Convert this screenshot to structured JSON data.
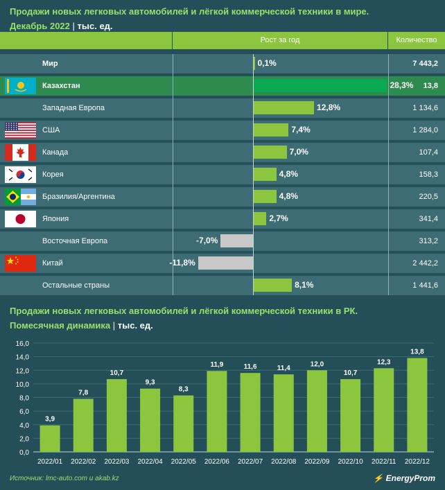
{
  "table": {
    "title_line1": "Продажи новых легковых автомобилей и лёгкой коммерческой техники в мире.",
    "title_line2": "Декабрь 2022",
    "unit_sep": "|",
    "unit": "тыс. ед.",
    "col_growth": "Рост за год",
    "col_qty": "Количество",
    "rows": [
      {
        "country": "Мир",
        "growth": 0.1,
        "growth_label": "0,1%",
        "qty": "7 443,2"
      },
      {
        "country": "Казахстан",
        "growth": 28.3,
        "growth_label": "28,3%",
        "qty": "13,8"
      },
      {
        "country": "Западная Европа",
        "growth": 12.8,
        "growth_label": "12,8%",
        "qty": "1 134,6"
      },
      {
        "country": "США",
        "growth": 7.4,
        "growth_label": "7,4%",
        "qty": "1 284,0"
      },
      {
        "country": "Канада",
        "growth": 7.0,
        "growth_label": "7,0%",
        "qty": "107,4"
      },
      {
        "country": "Корея",
        "growth": 4.8,
        "growth_label": "4,8%",
        "qty": "158,3"
      },
      {
        "country": "Бразилия/Аргентина",
        "growth": 4.8,
        "growth_label": "4,8%",
        "qty": "220,5"
      },
      {
        "country": "Япония",
        "growth": 2.7,
        "growth_label": "2,7%",
        "qty": "341,4"
      },
      {
        "country": "Восточная Европа",
        "growth": -7.0,
        "growth_label": "-7,0%",
        "qty": "313,2"
      },
      {
        "country": "Китай",
        "growth": -11.8,
        "growth_label": "-11,8%",
        "qty": "2 442,2"
      },
      {
        "country": "Остальные страны",
        "growth": 8.1,
        "growth_label": "8,1%",
        "qty": "1 441,6"
      }
    ],
    "flags": [
      "",
      "kazakhstan-flag",
      "",
      "usa-flag",
      "canada-flag",
      "korea-flag",
      "brazil-argentina-flag",
      "japan-flag",
      "",
      "china-flag",
      ""
    ],
    "colors": {
      "positive": "#8cc63e",
      "highlight": "#0aa850",
      "negative": "#c8c8c8"
    }
  },
  "chart": {
    "title_line1": "Продажи новых легковых автомобилей и лёгкой коммерческой техники в РК.",
    "title_line2": "Помесячная динамика",
    "unit_sep": "|",
    "unit": "тыс. ед."
  },
  "chart_data": {
    "type": "bar",
    "title": "Продажи новых легковых автомобилей и лёгкой коммерческой техники в РК. Помесячная динамика",
    "categories": [
      "2022/01",
      "2022/02",
      "2022/03",
      "2022/04",
      "2022/05",
      "2022/06",
      "2022/07",
      "2022/08",
      "2022/09",
      "2022/10",
      "2022/11",
      "2022/12"
    ],
    "values": [
      3.9,
      7.8,
      10.7,
      9.3,
      8.3,
      11.9,
      11.6,
      11.4,
      12.0,
      10.7,
      12.3,
      13.8
    ],
    "value_labels": [
      "3,9",
      "7,8",
      "10,7",
      "9,3",
      "8,3",
      "11,9",
      "11,6",
      "11,4",
      "12,0",
      "10,7",
      "12,3",
      "13,8"
    ],
    "yticks": [
      "0,0",
      "2,0",
      "4,0",
      "6,0",
      "8,0",
      "10,0",
      "12,0",
      "14,0",
      "16,0"
    ],
    "ylim": [
      0,
      16
    ],
    "xlabel": "",
    "ylabel": "тыс. ед.",
    "bar_color": "#8cc63e"
  },
  "footer": {
    "source": "Источник: lmc-auto.com и akab.kz",
    "logo": "EnergyProm"
  }
}
